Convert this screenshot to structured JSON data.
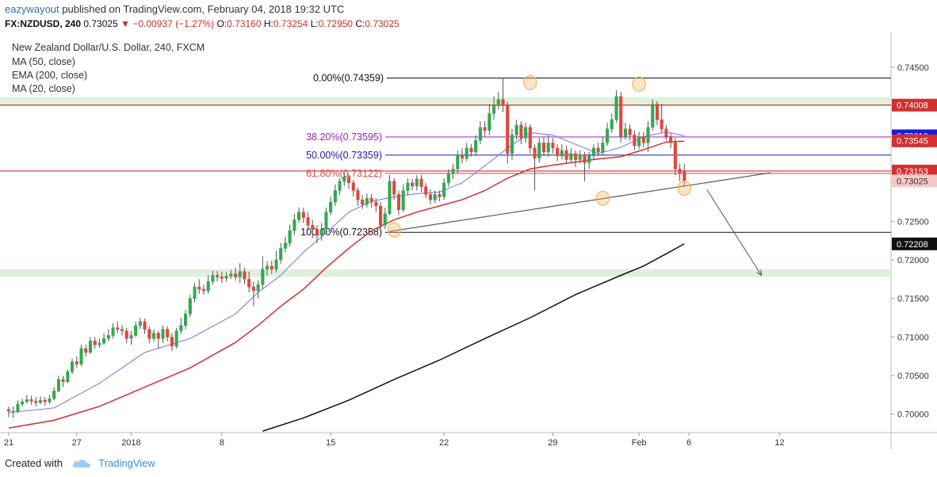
{
  "header": {
    "author": "eazywayout",
    "published_text": "published on TradingView.com, February 04, 2018 19:32 UTC",
    "symbol": "FX:NZDUSD, 240",
    "last": "0.73025",
    "change": "−0.00937 (−1.27%)",
    "o_label": "O:",
    "o_value": "0.73160",
    "h_label": "H:",
    "h_value": "0.73254",
    "l_label": "L:",
    "l_value": "0.72950",
    "c_label": "C:",
    "c_value": "0.73025"
  },
  "legend": {
    "title": "New Zealand Dollar/U.S. Dollar, 240, FXCM",
    "ma50": "MA (50, close)",
    "ema200": "EMA (200, close)",
    "ma20": "MA (20, close)"
  },
  "footer": {
    "created_with": "Created with",
    "brand": "TradingView"
  },
  "colors": {
    "up": "#33a853",
    "down": "#e0483e",
    "ma50": "#d32f2f",
    "ema200": "#111111",
    "ma20": "#7b7fe0",
    "fib_mid": "#1a1aa8",
    "fib_382": "#a020c8",
    "fib_618": "#e0483e",
    "zone": "#dff0dc",
    "marker": "#f2b463"
  },
  "chart_data": {
    "type": "candlestick",
    "title": "New Zealand Dollar/U.S. Dollar, 240, FXCM",
    "x_tick_labels": [
      "21",
      "27",
      "2018",
      "8",
      "15",
      "22",
      "29",
      "Feb",
      "6",
      "12"
    ],
    "y_tick_labels": [
      "0.74500",
      "0.74000",
      "0.73500",
      "0.73000",
      "0.72500",
      "0.72000",
      "0.71500",
      "0.71000",
      "0.70500",
      "0.70000"
    ],
    "ylim": [
      0.6976,
      0.7495
    ],
    "price_tags": [
      {
        "text": "0.74008",
        "value": 0.74008,
        "bg": "#d32f2f",
        "fg": "#ffffff"
      },
      {
        "text": "0.73610",
        "value": 0.7361,
        "bg": "#1a1ae0",
        "fg": "#ffffff"
      },
      {
        "text": "0.73545",
        "value": 0.73545,
        "bg": "#d32f2f",
        "fg": "#ffffff"
      },
      {
        "text": "0.73153",
        "value": 0.73153,
        "bg": "#d32f2f",
        "fg": "#ffffff"
      },
      {
        "text": "0.73025",
        "value": 0.73025,
        "bg": "#f7c8c8",
        "fg": "#333333"
      },
      {
        "text": "0.72208",
        "value": 0.72208,
        "bg": "#111111",
        "fg": "#ffffff"
      }
    ],
    "fib_levels": [
      {
        "label": "0.00%(0.74359)",
        "value": 0.74359,
        "color": "#111111"
      },
      {
        "label": "38.20%(0.73595)",
        "value": 0.73595,
        "color": "#a020c8"
      },
      {
        "label": "50.00%(0.73359)",
        "value": 0.73359,
        "color": "#1a1aa8"
      },
      {
        "label": "61.80%(0.73122)",
        "value": 0.73122,
        "color": "#e0483e"
      },
      {
        "label": "100.00%(0.72358)",
        "value": 0.72358,
        "color": "#111111"
      }
    ],
    "horizontal_lines": [
      {
        "value": 0.74008,
        "color": "#b71c1c"
      },
      {
        "value": 0.73153,
        "color": "#b71c1c"
      }
    ],
    "zones": [
      {
        "from": 0.7399,
        "to": 0.7411
      },
      {
        "from": 0.7178,
        "to": 0.7188
      }
    ],
    "candles": [
      [
        0.7006,
        0.7004,
        0.701,
        0.6996
      ],
      [
        0.7004,
        0.7004,
        0.701,
        0.6995
      ],
      [
        0.7004,
        0.7013,
        0.7018,
        0.7001
      ],
      [
        0.7013,
        0.7016,
        0.702,
        0.701
      ],
      [
        0.7016,
        0.7019,
        0.7025,
        0.7014
      ],
      [
        0.7019,
        0.7017,
        0.7024,
        0.7012
      ],
      [
        0.7017,
        0.7015,
        0.7022,
        0.701
      ],
      [
        0.7015,
        0.7018,
        0.7023,
        0.7013
      ],
      [
        0.7018,
        0.7016,
        0.7022,
        0.7011
      ],
      [
        0.7016,
        0.702,
        0.7025,
        0.7013
      ],
      [
        0.702,
        0.703,
        0.7035,
        0.7018
      ],
      [
        0.703,
        0.7045,
        0.705,
        0.7028
      ],
      [
        0.7045,
        0.7042,
        0.705,
        0.7035
      ],
      [
        0.7042,
        0.7055,
        0.7058,
        0.704
      ],
      [
        0.7055,
        0.7068,
        0.7072,
        0.7052
      ],
      [
        0.7068,
        0.7065,
        0.7075,
        0.706
      ],
      [
        0.7065,
        0.7085,
        0.709,
        0.7062
      ],
      [
        0.7085,
        0.708,
        0.709,
        0.7075
      ],
      [
        0.708,
        0.7095,
        0.71,
        0.7078
      ],
      [
        0.7095,
        0.709,
        0.71,
        0.7085
      ],
      [
        0.709,
        0.7092,
        0.7098,
        0.7086
      ],
      [
        0.7092,
        0.7098,
        0.7105,
        0.709
      ],
      [
        0.7098,
        0.7102,
        0.711,
        0.7094
      ],
      [
        0.7102,
        0.7112,
        0.7118,
        0.7098
      ],
      [
        0.7112,
        0.711,
        0.712,
        0.7105
      ],
      [
        0.711,
        0.7108,
        0.7115,
        0.7102
      ],
      [
        0.7108,
        0.7098,
        0.7112,
        0.7092
      ],
      [
        0.7098,
        0.7102,
        0.7108,
        0.709
      ],
      [
        0.7102,
        0.7115,
        0.712,
        0.71
      ],
      [
        0.7115,
        0.712,
        0.7125,
        0.711
      ],
      [
        0.712,
        0.711,
        0.7124,
        0.7104
      ],
      [
        0.711,
        0.7098,
        0.7114,
        0.7092
      ],
      [
        0.7098,
        0.7105,
        0.711,
        0.7094
      ],
      [
        0.7105,
        0.7098,
        0.7108,
        0.7085
      ],
      [
        0.7098,
        0.711,
        0.7115,
        0.7092
      ],
      [
        0.711,
        0.71,
        0.7114,
        0.7094
      ],
      [
        0.71,
        0.7088,
        0.7105,
        0.7082
      ],
      [
        0.7088,
        0.7108,
        0.7112,
        0.7085
      ],
      [
        0.7108,
        0.7115,
        0.7125,
        0.7104
      ],
      [
        0.7115,
        0.713,
        0.7135,
        0.711
      ],
      [
        0.713,
        0.715,
        0.7155,
        0.7126
      ],
      [
        0.715,
        0.7165,
        0.717,
        0.7145
      ],
      [
        0.7165,
        0.7162,
        0.7175,
        0.7156
      ],
      [
        0.7162,
        0.716,
        0.7168,
        0.7155
      ],
      [
        0.716,
        0.7172,
        0.718,
        0.7156
      ],
      [
        0.7172,
        0.718,
        0.7186,
        0.7168
      ],
      [
        0.718,
        0.7178,
        0.7186,
        0.7172
      ],
      [
        0.7178,
        0.7176,
        0.7185,
        0.717
      ],
      [
        0.7176,
        0.7179,
        0.7184,
        0.7172
      ],
      [
        0.7179,
        0.7182,
        0.7187,
        0.7175
      ],
      [
        0.7182,
        0.7178,
        0.719,
        0.7173
      ],
      [
        0.7178,
        0.7185,
        0.7196,
        0.717
      ],
      [
        0.7185,
        0.7175,
        0.719,
        0.7168
      ],
      [
        0.7175,
        0.7165,
        0.7185,
        0.7158
      ],
      [
        0.7165,
        0.716,
        0.7172,
        0.714
      ],
      [
        0.716,
        0.7168,
        0.7174,
        0.715
      ],
      [
        0.7168,
        0.7188,
        0.7205,
        0.7162
      ],
      [
        0.7188,
        0.7192,
        0.7198,
        0.718
      ],
      [
        0.7192,
        0.7188,
        0.7199,
        0.7182
      ],
      [
        0.7188,
        0.72,
        0.7212,
        0.7184
      ],
      [
        0.72,
        0.7215,
        0.7222,
        0.7195
      ],
      [
        0.7215,
        0.7222,
        0.723,
        0.721
      ],
      [
        0.7222,
        0.7238,
        0.7246,
        0.7218
      ],
      [
        0.7238,
        0.7252,
        0.726,
        0.7232
      ],
      [
        0.7252,
        0.7262,
        0.7268,
        0.7248
      ],
      [
        0.7262,
        0.7255,
        0.7268,
        0.7248
      ],
      [
        0.7255,
        0.7245,
        0.7262,
        0.7238
      ],
      [
        0.7245,
        0.724,
        0.7252,
        0.7228
      ],
      [
        0.724,
        0.7232,
        0.7245,
        0.7222
      ],
      [
        0.7232,
        0.724,
        0.7248,
        0.7225
      ],
      [
        0.724,
        0.7262,
        0.7268,
        0.7236
      ],
      [
        0.7262,
        0.7275,
        0.7282,
        0.7258
      ],
      [
        0.7275,
        0.729,
        0.7298,
        0.727
      ],
      [
        0.729,
        0.7302,
        0.7306,
        0.7284
      ],
      [
        0.7302,
        0.7308,
        0.7314,
        0.7296
      ],
      [
        0.7308,
        0.73,
        0.7312,
        0.7292
      ],
      [
        0.73,
        0.729,
        0.7304,
        0.7282
      ],
      [
        0.729,
        0.7278,
        0.7294,
        0.727
      ],
      [
        0.7278,
        0.7272,
        0.7284,
        0.7266
      ],
      [
        0.7272,
        0.728,
        0.7286,
        0.7268
      ],
      [
        0.728,
        0.7275,
        0.7286,
        0.7268
      ],
      [
        0.7275,
        0.727,
        0.728,
        0.7262
      ],
      [
        0.727,
        0.7245,
        0.7275,
        0.7238
      ],
      [
        0.7245,
        0.726,
        0.7268,
        0.724
      ],
      [
        0.726,
        0.7302,
        0.731,
        0.7258
      ],
      [
        0.7302,
        0.7285,
        0.7306,
        0.7278
      ],
      [
        0.7285,
        0.7265,
        0.729,
        0.7258
      ],
      [
        0.7265,
        0.729,
        0.7298,
        0.7262
      ],
      [
        0.729,
        0.73,
        0.7306,
        0.7284
      ],
      [
        0.73,
        0.7296,
        0.7305,
        0.729
      ],
      [
        0.7296,
        0.7305,
        0.731,
        0.729
      ],
      [
        0.7305,
        0.7295,
        0.731,
        0.7288
      ],
      [
        0.7295,
        0.7285,
        0.73,
        0.728
      ],
      [
        0.7285,
        0.7278,
        0.7292,
        0.7272
      ],
      [
        0.7278,
        0.7285,
        0.729,
        0.7274
      ],
      [
        0.7285,
        0.7282,
        0.729,
        0.7276
      ],
      [
        0.7282,
        0.73,
        0.7306,
        0.7278
      ],
      [
        0.73,
        0.7312,
        0.7318,
        0.7295
      ],
      [
        0.7312,
        0.7318,
        0.7325,
        0.7305
      ],
      [
        0.7318,
        0.7336,
        0.7342,
        0.7312
      ],
      [
        0.7336,
        0.7332,
        0.7345,
        0.7325
      ],
      [
        0.7332,
        0.7345,
        0.7352,
        0.7328
      ],
      [
        0.7345,
        0.734,
        0.735,
        0.7334
      ],
      [
        0.734,
        0.7355,
        0.7362,
        0.7335
      ],
      [
        0.7355,
        0.7372,
        0.738,
        0.735
      ],
      [
        0.7372,
        0.7368,
        0.738,
        0.736
      ],
      [
        0.7368,
        0.739,
        0.7402,
        0.7362
      ],
      [
        0.739,
        0.74,
        0.7412,
        0.7382
      ],
      [
        0.74,
        0.7408,
        0.7418,
        0.7395
      ],
      [
        0.7408,
        0.74,
        0.7436,
        0.7392
      ],
      [
        0.74,
        0.7338,
        0.7405,
        0.7325
      ],
      [
        0.7338,
        0.7362,
        0.737,
        0.733
      ],
      [
        0.7362,
        0.7375,
        0.7382,
        0.7356
      ],
      [
        0.7375,
        0.7358,
        0.738,
        0.735
      ],
      [
        0.7358,
        0.7372,
        0.7378,
        0.7352
      ],
      [
        0.7372,
        0.7345,
        0.7376,
        0.7338
      ],
      [
        0.7345,
        0.7332,
        0.735,
        0.729
      ],
      [
        0.7332,
        0.7352,
        0.7358,
        0.7326
      ],
      [
        0.7352,
        0.734,
        0.736,
        0.7335
      ],
      [
        0.734,
        0.7352,
        0.7362,
        0.7334
      ],
      [
        0.7352,
        0.7345,
        0.7358,
        0.7338
      ],
      [
        0.7345,
        0.7335,
        0.735,
        0.7328
      ],
      [
        0.7335,
        0.7342,
        0.735,
        0.733
      ],
      [
        0.7342,
        0.733,
        0.7348,
        0.7325
      ],
      [
        0.733,
        0.7338,
        0.7345,
        0.7326
      ],
      [
        0.7338,
        0.733,
        0.7342,
        0.732
      ],
      [
        0.733,
        0.7336,
        0.7342,
        0.7325
      ],
      [
        0.7336,
        0.7326,
        0.734,
        0.7302
      ],
      [
        0.7326,
        0.7335,
        0.734,
        0.7318
      ],
      [
        0.7335,
        0.7345,
        0.735,
        0.733
      ],
      [
        0.7345,
        0.734,
        0.7352,
        0.7335
      ],
      [
        0.734,
        0.7352,
        0.736,
        0.7336
      ],
      [
        0.7352,
        0.737,
        0.7378,
        0.7348
      ],
      [
        0.737,
        0.7382,
        0.739,
        0.7365
      ],
      [
        0.7382,
        0.7412,
        0.742,
        0.7378
      ],
      [
        0.7412,
        0.736,
        0.7418,
        0.7352
      ],
      [
        0.736,
        0.737,
        0.7378,
        0.7356
      ],
      [
        0.737,
        0.7362,
        0.7376,
        0.7355
      ],
      [
        0.7362,
        0.7348,
        0.7368,
        0.7342
      ],
      [
        0.7348,
        0.736,
        0.7366,
        0.7344
      ],
      [
        0.736,
        0.7352,
        0.7366,
        0.7346
      ],
      [
        0.7352,
        0.7372,
        0.738,
        0.734
      ],
      [
        0.7372,
        0.7402,
        0.7408,
        0.7368
      ],
      [
        0.7402,
        0.7382,
        0.7406,
        0.7375
      ],
      [
        0.7382,
        0.737,
        0.7402,
        0.7365
      ],
      [
        0.737,
        0.736,
        0.7375,
        0.7355
      ],
      [
        0.736,
        0.7352,
        0.7365,
        0.7345
      ],
      [
        0.7352,
        0.7318,
        0.7358,
        0.731
      ],
      [
        0.7318,
        0.7312,
        0.7325,
        0.7302
      ],
      [
        0.7316,
        0.7302,
        0.7325,
        0.7295
      ]
    ],
    "ma20": [
      [
        0,
        0.7002
      ],
      [
        10,
        0.7008
      ],
      [
        20,
        0.704
      ],
      [
        30,
        0.708
      ],
      [
        40,
        0.7098
      ],
      [
        50,
        0.713
      ],
      [
        55,
        0.7158
      ],
      [
        60,
        0.718
      ],
      [
        65,
        0.721
      ],
      [
        70,
        0.7235
      ],
      [
        75,
        0.7262
      ],
      [
        80,
        0.7276
      ],
      [
        85,
        0.7282
      ],
      [
        90,
        0.7286
      ],
      [
        95,
        0.7288
      ],
      [
        100,
        0.73
      ],
      [
        105,
        0.7322
      ],
      [
        110,
        0.7345
      ],
      [
        115,
        0.7365
      ],
      [
        120,
        0.7362
      ],
      [
        125,
        0.735
      ],
      [
        130,
        0.7338
      ],
      [
        135,
        0.7346
      ],
      [
        140,
        0.736
      ],
      [
        145,
        0.7366
      ],
      [
        149,
        0.7361
      ]
    ],
    "ma50": [
      [
        0,
        0.6982
      ],
      [
        10,
        0.6992
      ],
      [
        20,
        0.701
      ],
      [
        30,
        0.7035
      ],
      [
        40,
        0.706
      ],
      [
        50,
        0.7093
      ],
      [
        55,
        0.7115
      ],
      [
        60,
        0.714
      ],
      [
        65,
        0.7162
      ],
      [
        70,
        0.719
      ],
      [
        75,
        0.7215
      ],
      [
        80,
        0.7238
      ],
      [
        85,
        0.7252
      ],
      [
        90,
        0.7262
      ],
      [
        95,
        0.727
      ],
      [
        100,
        0.7278
      ],
      [
        105,
        0.729
      ],
      [
        110,
        0.7306
      ],
      [
        115,
        0.7318
      ],
      [
        120,
        0.7323
      ],
      [
        125,
        0.7327
      ],
      [
        130,
        0.7331
      ],
      [
        135,
        0.7334
      ],
      [
        140,
        0.7343
      ],
      [
        145,
        0.7353
      ],
      [
        149,
        0.7354
      ]
    ],
    "ema200": [
      [
        56,
        0.6978
      ],
      [
        65,
        0.6995
      ],
      [
        75,
        0.7018
      ],
      [
        85,
        0.7045
      ],
      [
        95,
        0.707
      ],
      [
        105,
        0.7098
      ],
      [
        115,
        0.7125
      ],
      [
        125,
        0.7155
      ],
      [
        135,
        0.718
      ],
      [
        140,
        0.7192
      ],
      [
        145,
        0.7208
      ],
      [
        149,
        0.7221
      ]
    ],
    "trendline": {
      "from": [
        84,
        0.7237
      ],
      "to": [
        168,
        0.7313
      ]
    },
    "forecast_arrow": {
      "from": [
        154,
        0.7291
      ],
      "to": [
        166,
        0.718
      ]
    },
    "markers": [
      {
        "x": 115,
        "y": 0.743
      },
      {
        "x": 139,
        "y": 0.7428
      },
      {
        "x": 85,
        "y": 0.7239
      },
      {
        "x": 131,
        "y": 0.728
      },
      {
        "x": 149,
        "y": 0.7293
      }
    ],
    "x_ticks": [
      0,
      15,
      27,
      47,
      71,
      96,
      120,
      139,
      150,
      170
    ]
  }
}
